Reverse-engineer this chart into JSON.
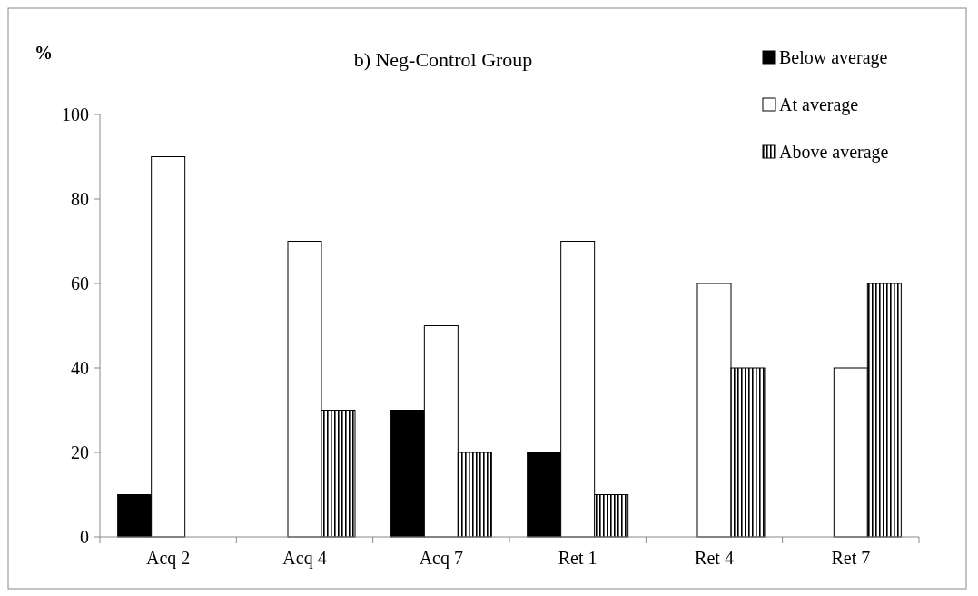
{
  "chart_data": {
    "type": "bar",
    "title": "b) Neg-Control Group",
    "ylabel": "%",
    "categories": [
      "Acq 2",
      "Acq 4",
      "Acq 7",
      "Ret 1",
      "Ret 4",
      "Ret 7"
    ],
    "series": [
      {
        "name": "Below average",
        "color": "#000000",
        "values": [
          10,
          0,
          30,
          20,
          0,
          0
        ]
      },
      {
        "name": "At average",
        "color": "#ffffff",
        "values": [
          90,
          70,
          50,
          70,
          60,
          40
        ]
      },
      {
        "name": "Above average",
        "color": "#000000",
        "values": [
          0,
          30,
          20,
          10,
          40,
          60
        ]
      }
    ],
    "ylim": [
      0,
      100
    ],
    "yticks": [
      0,
      20,
      40,
      60,
      80,
      100
    ],
    "grid": false,
    "legend": "top right"
  }
}
